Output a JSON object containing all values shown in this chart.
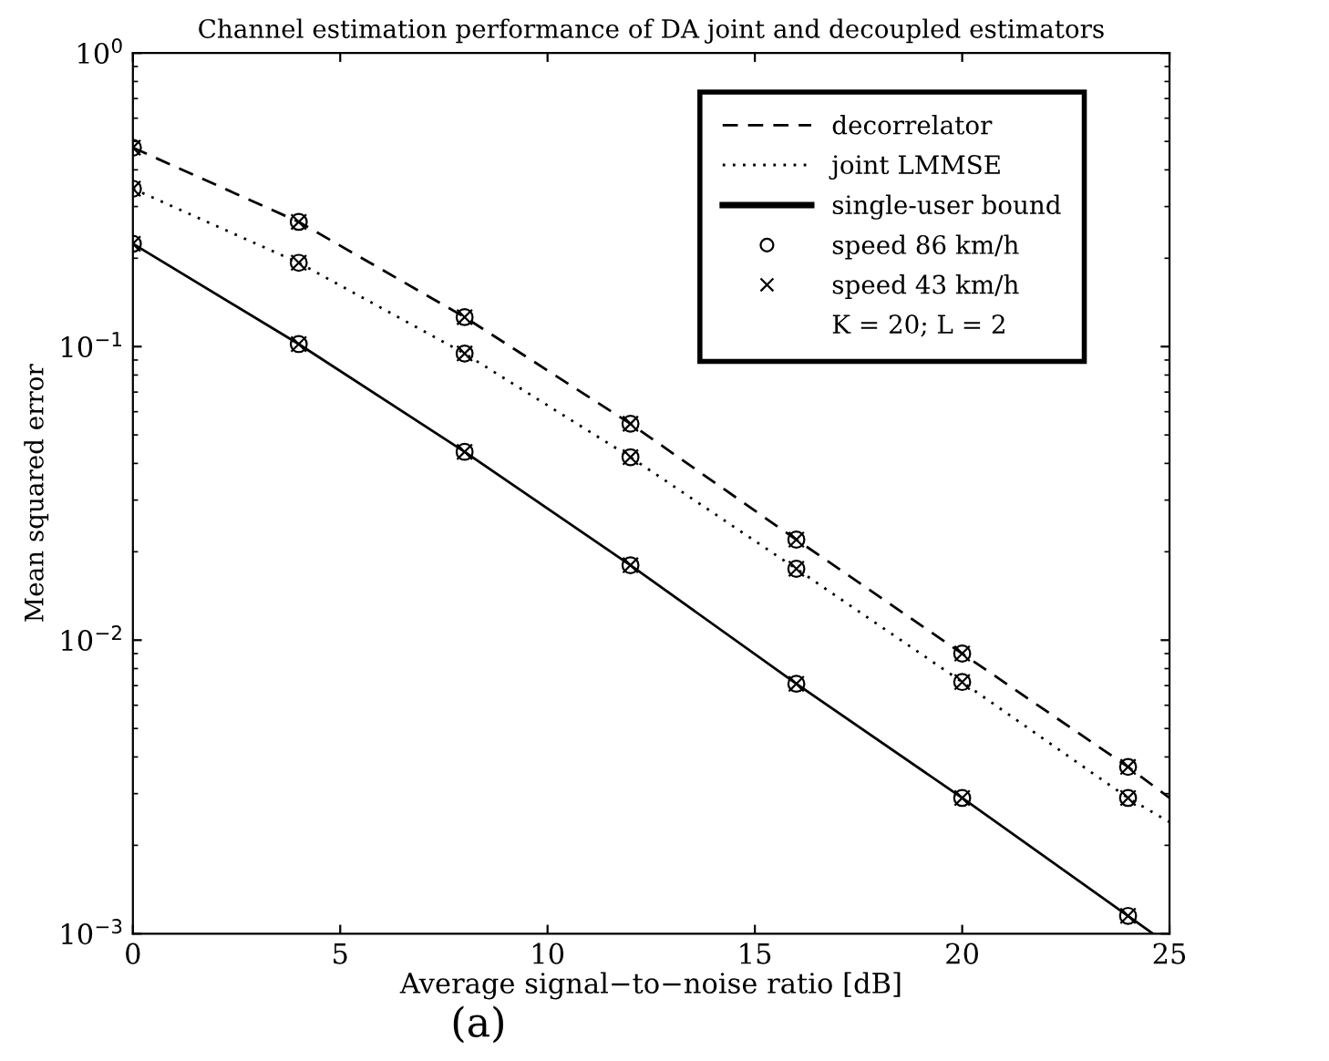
{
  "chart_data": {
    "type": "line",
    "title": "Channel estimation performance of DA joint and decoupled estimators",
    "xlabel": "Average signal−to−noise ratio [dB]",
    "ylabel": "Mean squared error",
    "series": [
      {
        "name": "decorrelator",
        "color": "#000000",
        "line_style": "dashed",
        "marker": "none",
        "x": [
          0,
          4,
          8,
          12,
          16,
          20,
          24,
          25
        ],
        "values": [
          0.476,
          0.266,
          0.126,
          0.0546,
          0.022,
          0.009,
          0.0037,
          0.0029
        ]
      },
      {
        "name": "joint LMMSE",
        "color": "#000000",
        "line_style": "dotted",
        "marker": "none",
        "x": [
          0,
          4,
          8,
          12,
          16,
          20,
          24,
          25
        ],
        "values": [
          0.345,
          0.193,
          0.0947,
          0.042,
          0.0175,
          0.0072,
          0.0029,
          0.0024
        ]
      },
      {
        "name": "single-user bound",
        "color": "#000000",
        "line_style": "solid",
        "marker": "none",
        "x": [
          0,
          4,
          8,
          12,
          16,
          20,
          24,
          24.6
        ],
        "values": [
          0.224,
          0.102,
          0.0438,
          0.018,
          0.0071,
          0.0029,
          0.00115,
          0.001
        ]
      },
      {
        "name": "speed 86 km/h",
        "type": "scatter",
        "color": "#000000",
        "marker": "circle",
        "x": [
          0,
          4,
          8,
          12,
          16,
          20,
          24,
          0,
          4,
          8,
          12,
          16,
          20,
          24,
          0,
          4,
          8,
          12,
          16,
          20,
          24
        ],
        "values": [
          0.476,
          0.266,
          0.126,
          0.0546,
          0.022,
          0.009,
          0.0037,
          0.345,
          0.193,
          0.0947,
          0.042,
          0.0175,
          0.0072,
          0.0029,
          0.224,
          0.102,
          0.0438,
          0.018,
          0.0071,
          0.0029,
          0.00115
        ]
      },
      {
        "name": "speed 43 km/h",
        "type": "scatter",
        "color": "#000000",
        "marker": "cross",
        "x": [
          0,
          4,
          8,
          12,
          16,
          20,
          24,
          0,
          4,
          8,
          12,
          16,
          20,
          24,
          0,
          4,
          8,
          12,
          16,
          20,
          24
        ],
        "values": [
          0.476,
          0.266,
          0.126,
          0.0546,
          0.022,
          0.009,
          0.0037,
          0.345,
          0.193,
          0.0947,
          0.042,
          0.0175,
          0.0072,
          0.0029,
          0.224,
          0.102,
          0.0438,
          0.018,
          0.0071,
          0.0029,
          0.00115
        ]
      }
    ],
    "log": "y",
    "xlim": [
      0,
      25
    ],
    "ylim": [
      0.001,
      1
    ],
    "xticks": [
      0,
      5,
      10,
      15,
      20,
      25
    ],
    "yticks": [
      {
        "value": 0.001,
        "label": "10$^{−3}$"
      },
      {
        "value": 0.01,
        "label": "10$^{−2}$"
      },
      {
        "value": 0.1,
        "label": "10$^{−1}$"
      },
      {
        "value": 1,
        "label": "10$^{0}$"
      }
    ],
    "grid": false,
    "legend": "top right",
    "annotations": [
      "K = 20; L = 2",
      "(a)"
    ]
  }
}
